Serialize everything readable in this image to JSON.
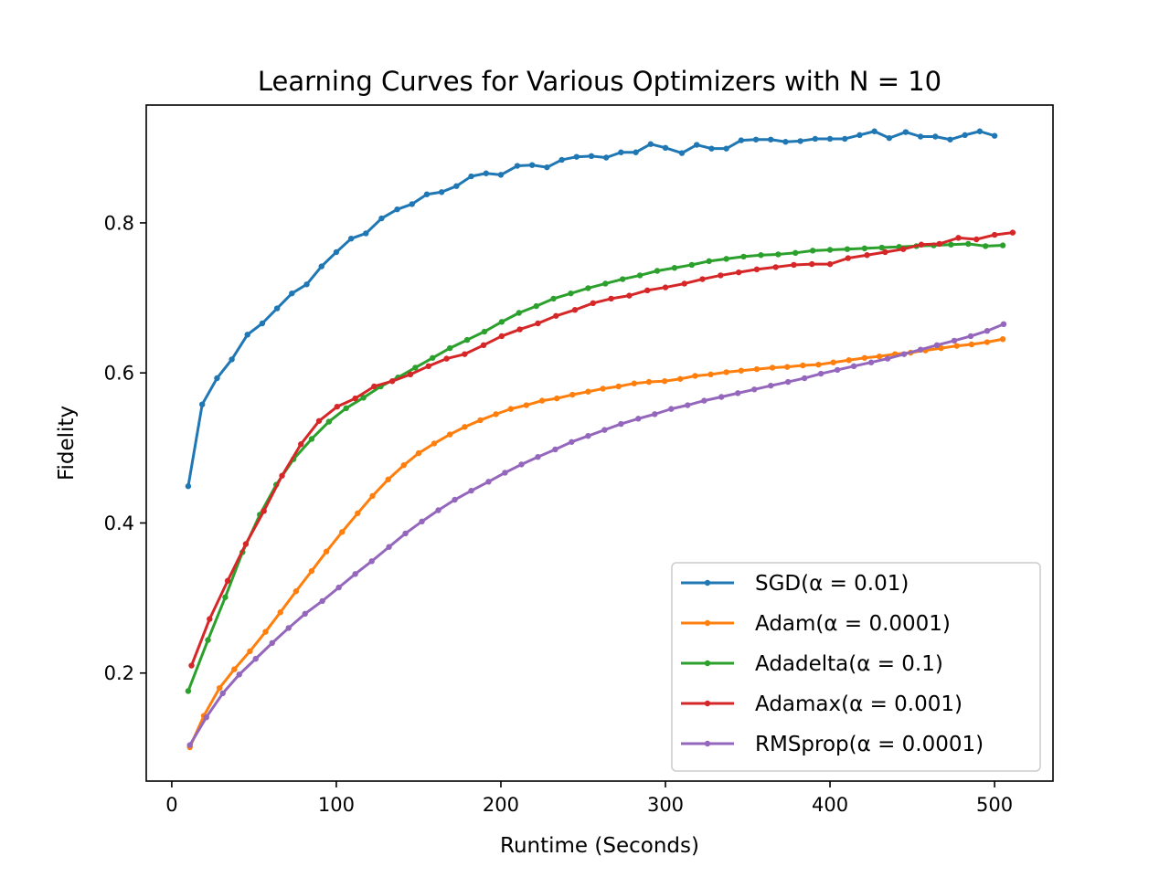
{
  "chart_data": {
    "type": "line",
    "title": "Learning Curves for Various Optimizers with N = 10",
    "xlabel": "Runtime (Seconds)",
    "ylabel": "Fidelity",
    "xlim": [
      -15.5,
      535.5
    ],
    "ylim": [
      0.056,
      0.957
    ],
    "xticks": [
      0,
      100,
      200,
      300,
      400,
      500
    ],
    "xtick_labels": [
      "0",
      "100",
      "200",
      "300",
      "400",
      "500"
    ],
    "yticks": [
      0.2,
      0.4,
      0.6,
      0.8
    ],
    "ytick_labels": [
      "0.2",
      "0.4",
      "0.6",
      "0.8"
    ],
    "grid": false,
    "legend_position": "bottom-right",
    "series": [
      {
        "name": "SGD(α = 0.01)",
        "color": "#1f77b4",
        "x": [
          10,
          18.5,
          27.5,
          36.5,
          46,
          55,
          64,
          73,
          82,
          91,
          100,
          109,
          118,
          127.5,
          137,
          146,
          155,
          164,
          173,
          182,
          191,
          200,
          210,
          219,
          228,
          237,
          246,
          255,
          264,
          273,
          282,
          291,
          300,
          310,
          319,
          328,
          337,
          346,
          355,
          364,
          373,
          382,
          391,
          400,
          409,
          418,
          427,
          436,
          446,
          455,
          464,
          473,
          482,
          491,
          500
        ],
        "y": [
          0.449,
          0.558,
          0.593,
          0.618,
          0.651,
          0.666,
          0.686,
          0.706,
          0.718,
          0.742,
          0.761,
          0.779,
          0.786,
          0.806,
          0.818,
          0.825,
          0.838,
          0.841,
          0.849,
          0.862,
          0.866,
          0.864,
          0.876,
          0.877,
          0.874,
          0.884,
          0.888,
          0.889,
          0.887,
          0.894,
          0.894,
          0.905,
          0.9,
          0.893,
          0.904,
          0.899,
          0.899,
          0.91,
          0.911,
          0.911,
          0.908,
          0.909,
          0.912,
          0.912,
          0.912,
          0.917,
          0.922,
          0.913,
          0.921,
          0.915,
          0.915,
          0.911,
          0.917,
          0.922,
          0.916
        ]
      },
      {
        "name": "Adam(α = 0.0001)",
        "color": "#ff7f0e",
        "x": [
          11,
          19.5,
          29,
          38,
          47.5,
          57,
          66,
          75.5,
          85,
          94,
          103.5,
          113,
          122,
          131.5,
          141,
          150,
          159.5,
          169,
          178,
          187.5,
          197,
          206,
          215.5,
          225,
          234,
          243.5,
          253,
          262,
          271.5,
          281,
          290,
          299.5,
          309,
          318,
          327.5,
          337,
          346,
          355.5,
          365,
          374,
          383.5,
          393,
          402,
          411.5,
          421,
          430,
          439.5,
          449,
          458,
          467.5,
          477,
          486,
          495.5,
          505
        ],
        "y": [
          0.101,
          0.143,
          0.18,
          0.205,
          0.229,
          0.255,
          0.281,
          0.309,
          0.336,
          0.362,
          0.388,
          0.413,
          0.436,
          0.458,
          0.477,
          0.493,
          0.506,
          0.518,
          0.528,
          0.537,
          0.545,
          0.552,
          0.557,
          0.563,
          0.566,
          0.571,
          0.575,
          0.579,
          0.582,
          0.586,
          0.588,
          0.589,
          0.592,
          0.596,
          0.598,
          0.601,
          0.603,
          0.605,
          0.607,
          0.608,
          0.61,
          0.611,
          0.614,
          0.617,
          0.62,
          0.622,
          0.625,
          0.627,
          0.63,
          0.633,
          0.636,
          0.638,
          0.641,
          0.645
        ]
      },
      {
        "name": "Adadelta(α = 0.1)",
        "color": "#2ca02c",
        "x": [
          10,
          22,
          32.5,
          43,
          53.5,
          63.5,
          74,
          85,
          95.5,
          106,
          116.5,
          127,
          137.5,
          148,
          158.5,
          169,
          179.5,
          190,
          200.5,
          211,
          221.5,
          232,
          242.5,
          253,
          263.5,
          274,
          284.5,
          295,
          305.5,
          316,
          326.5,
          337,
          347.5,
          358,
          368.5,
          379,
          389.5,
          400,
          410.5,
          421,
          431.5,
          442,
          452.5,
          463,
          473.5,
          484,
          494.5,
          505
        ],
        "y": [
          0.176,
          0.244,
          0.301,
          0.361,
          0.411,
          0.451,
          0.485,
          0.512,
          0.535,
          0.553,
          0.567,
          0.582,
          0.594,
          0.607,
          0.62,
          0.633,
          0.644,
          0.655,
          0.668,
          0.68,
          0.689,
          0.699,
          0.706,
          0.713,
          0.719,
          0.725,
          0.73,
          0.736,
          0.74,
          0.744,
          0.749,
          0.752,
          0.755,
          0.757,
          0.758,
          0.76,
          0.763,
          0.764,
          0.765,
          0.766,
          0.767,
          0.768,
          0.769,
          0.77,
          0.771,
          0.772,
          0.769,
          0.77
        ]
      },
      {
        "name": "Adamax(α = 0.001)",
        "color": "#d62728",
        "x": [
          12,
          23,
          34,
          45,
          56,
          67,
          78.5,
          89.5,
          100.5,
          111.5,
          123,
          134,
          145,
          156,
          167,
          178,
          189.5,
          200.5,
          211.5,
          222.5,
          233.5,
          245,
          256,
          267,
          278,
          289,
          300,
          311.5,
          322.5,
          333.5,
          344.5,
          355.5,
          367,
          378,
          389,
          400,
          411,
          422.5,
          433.5,
          444.5,
          455.5,
          466.5,
          478,
          489,
          500,
          511
        ],
        "y": [
          0.21,
          0.272,
          0.323,
          0.372,
          0.416,
          0.463,
          0.505,
          0.536,
          0.555,
          0.566,
          0.582,
          0.589,
          0.598,
          0.609,
          0.619,
          0.625,
          0.637,
          0.649,
          0.658,
          0.666,
          0.676,
          0.684,
          0.693,
          0.699,
          0.703,
          0.71,
          0.714,
          0.719,
          0.725,
          0.73,
          0.734,
          0.738,
          0.741,
          0.744,
          0.745,
          0.745,
          0.753,
          0.757,
          0.761,
          0.765,
          0.771,
          0.772,
          0.78,
          0.778,
          0.784,
          0.787
        ]
      },
      {
        "name": "RMSprop(α = 0.0001)",
        "color": "#9467bd",
        "x": [
          11,
          21,
          31,
          41,
          51,
          61,
          71,
          81,
          91.5,
          101.5,
          111.5,
          121.5,
          132,
          142,
          152,
          162,
          172,
          182,
          192.5,
          202.5,
          212.5,
          222.5,
          233,
          243,
          253,
          263,
          273,
          283.5,
          293.5,
          303.5,
          313.5,
          323.5,
          334,
          344,
          354,
          364,
          374.5,
          384.5,
          394.5,
          404.5,
          414.5,
          425,
          435,
          445,
          455,
          465,
          475.5,
          485.5,
          495.5,
          505.5
        ],
        "y": [
          0.104,
          0.141,
          0.173,
          0.198,
          0.219,
          0.24,
          0.26,
          0.279,
          0.296,
          0.314,
          0.332,
          0.349,
          0.368,
          0.386,
          0.402,
          0.417,
          0.431,
          0.443,
          0.455,
          0.467,
          0.478,
          0.488,
          0.498,
          0.508,
          0.516,
          0.524,
          0.532,
          0.539,
          0.545,
          0.552,
          0.557,
          0.563,
          0.568,
          0.573,
          0.578,
          0.583,
          0.588,
          0.593,
          0.599,
          0.604,
          0.609,
          0.614,
          0.619,
          0.625,
          0.631,
          0.637,
          0.643,
          0.649,
          0.656,
          0.665
        ]
      }
    ]
  }
}
